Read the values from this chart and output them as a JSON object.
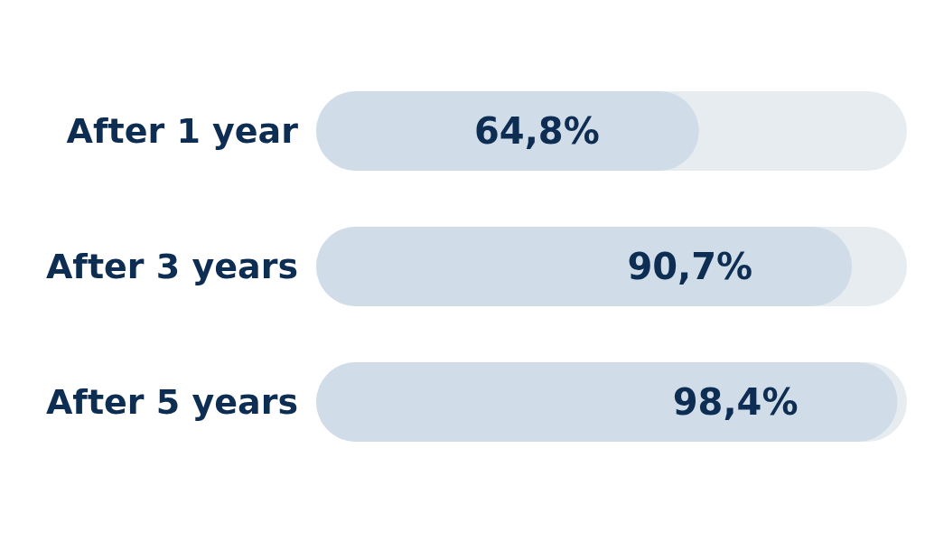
{
  "chart_data": {
    "type": "bar",
    "orientation": "horizontal",
    "categories": [
      "After 1 year",
      "After 3 years",
      "After 5 years"
    ],
    "values": [
      64.8,
      90.7,
      98.4
    ],
    "color": "#d0dde9",
    "value_labels": [
      "64,8%",
      "90,7%",
      "98,4%"
    ],
    "xlim": [
      0,
      100
    ],
    "tick_labels": "y"
  }
}
